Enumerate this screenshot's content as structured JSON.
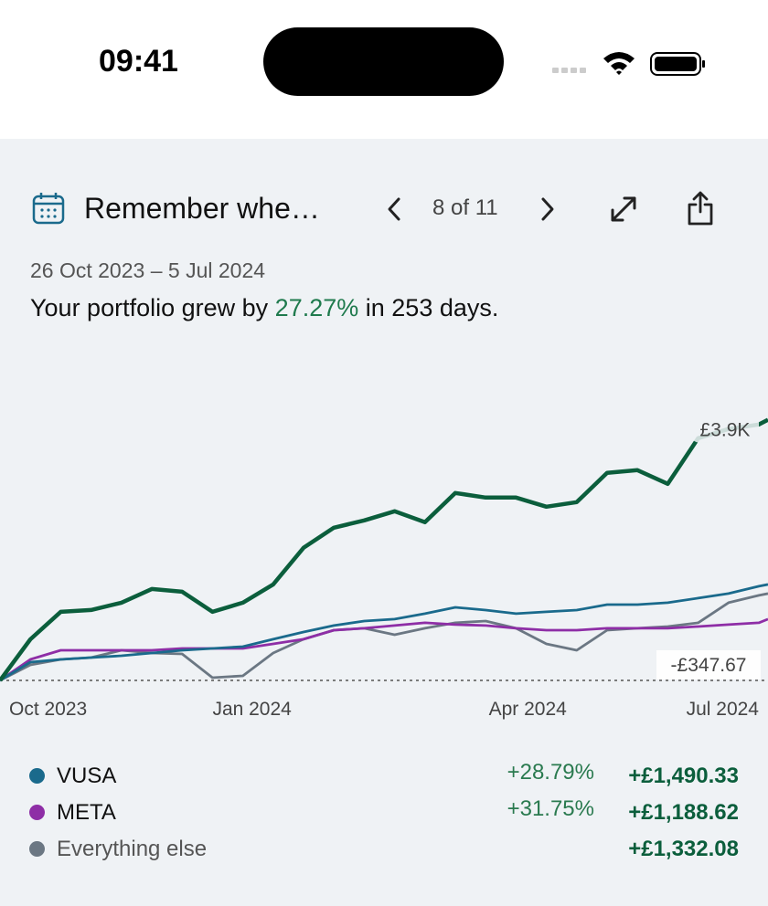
{
  "status_bar": {
    "time": "09:41"
  },
  "card": {
    "title": "Remember whe…",
    "pager": "8 of 11",
    "date_range": "26 Oct 2023 – 5 Jul 2024",
    "summary": {
      "prefix": "Your portfolio grew by",
      "growth": "27.27%",
      "suffix": "in 253 days."
    }
  },
  "chart_data": {
    "type": "line",
    "x": [
      0,
      10,
      20,
      30,
      40,
      50,
      60,
      70,
      80,
      90,
      100,
      110,
      120,
      130,
      140,
      150,
      160,
      170,
      180,
      190,
      200,
      210,
      220,
      230,
      240,
      250,
      253
    ],
    "xlim": [
      0,
      253
    ],
    "xticks": [
      {
        "value": 0,
        "label": "Oct 2023"
      },
      {
        "value": 67,
        "label": "Jan 2024"
      },
      {
        "value": 158,
        "label": "Apr 2024"
      },
      {
        "value": 253,
        "label": "Jul 2024"
      }
    ],
    "ylim": [
      0,
      4100
    ],
    "series": [
      {
        "color": "#0b5e3c",
        "values": [
          0,
          615,
          1026,
          1054,
          1163,
          1368,
          1327,
          1026,
          1163,
          1436,
          1984,
          2285,
          2394,
          2531,
          2367,
          2804,
          2736,
          2736,
          2599,
          2668,
          3105,
          3146,
          2941,
          3625,
          3762,
          3830,
          3900
        ]
      },
      {
        "name": "VUSA",
        "color": "#1a6a8c",
        "change_pct": "+28.79%",
        "change": "+£1,490.33",
        "values": [
          0,
          274,
          315,
          342,
          369,
          410,
          451,
          479,
          506,
          616,
          725,
          821,
          889,
          917,
          999,
          1094,
          1053,
          999,
          1026,
          1053,
          1135,
          1135,
          1163,
          1231,
          1300,
          1409,
          1436
        ]
      },
      {
        "name": "META",
        "color": "#8e2ea6",
        "change_pct": "+31.75%",
        "change": "+£1,188.62",
        "values": [
          0,
          315,
          451,
          451,
          451,
          451,
          479,
          479,
          479,
          547,
          616,
          752,
          780,
          821,
          862,
          835,
          821,
          780,
          752,
          752,
          780,
          780,
          780,
          807,
          835,
          862,
          917
        ]
      },
      {
        "name": "Everything else",
        "color": "#6b7783",
        "change": "+£1,332.08",
        "values": [
          0,
          233,
          315,
          342,
          451,
          410,
          397,
          41,
          68,
          410,
          616,
          752,
          780,
          684,
          780,
          862,
          889,
          780,
          547,
          451,
          752,
          780,
          807,
          862,
          1163,
          1272,
          1300
        ]
      }
    ],
    "annotations": [
      {
        "value": 3900,
        "label": "£3.9K"
      },
      {
        "label": "-£347.67"
      }
    ]
  }
}
